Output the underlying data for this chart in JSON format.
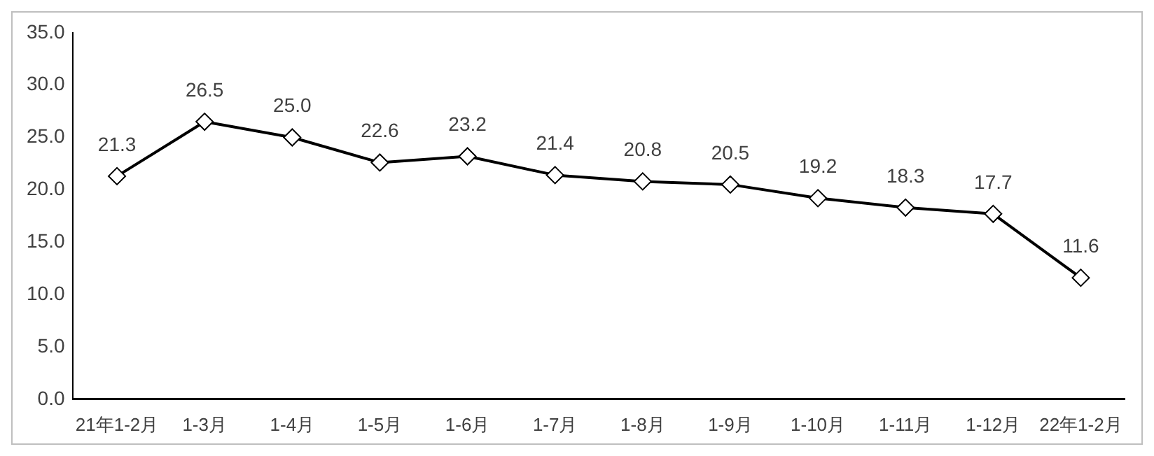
{
  "chart_data": {
    "type": "line",
    "categories": [
      "21年1-2月",
      "1-3月",
      "1-4月",
      "1-5月",
      "1-6月",
      "1-7月",
      "1-8月",
      "1-9月",
      "1-10月",
      "1-11月",
      "1-12月",
      "22年1-2月"
    ],
    "series": [
      {
        "color": "#000000",
        "values": [
          21.3,
          26.5,
          25.0,
          22.6,
          23.2,
          21.4,
          20.8,
          20.5,
          19.2,
          18.3,
          17.7,
          11.6
        ],
        "value_labels": [
          "21.3",
          "26.5",
          "25.0",
          "22.6",
          "23.2",
          "21.4",
          "20.8",
          "20.5",
          "19.2",
          "18.3",
          "17.7",
          "11.6"
        ]
      }
    ],
    "ylim": [
      0,
      35
    ],
    "yticks": [
      {
        "value": 0,
        "label": "0.0"
      },
      {
        "value": 5,
        "label": "5.0"
      },
      {
        "value": 10,
        "label": "10.0"
      },
      {
        "value": 15,
        "label": "15.0"
      },
      {
        "value": 20,
        "label": "20.0"
      },
      {
        "value": 25,
        "label": "25.0"
      },
      {
        "value": 30,
        "label": "30.0"
      },
      {
        "value": 35,
        "label": "35.0"
      }
    ],
    "grid": false,
    "legend": false,
    "marker": "diamond",
    "line_style": "solid"
  }
}
